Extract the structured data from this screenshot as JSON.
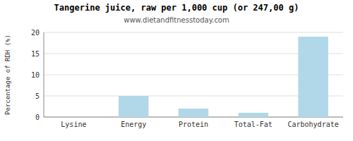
{
  "chart_data": {
    "type": "bar",
    "title": "Tangerine juice, raw per 1,000 cup (or 247,00 g)",
    "subtitle": "www.dietandfitnesstoday.com",
    "categories": [
      "Lysine",
      "Energy",
      "Protein",
      "Total-Fat",
      "Carbohydrate"
    ],
    "values": [
      0.0,
      5.0,
      2.0,
      1.0,
      19.0
    ],
    "color": "#b0d8e8",
    "ylabel": "Percentage of RDH (%)",
    "ylim": [
      0,
      20
    ],
    "yticks": [
      0,
      5,
      10,
      15,
      20
    ],
    "grid": true
  }
}
